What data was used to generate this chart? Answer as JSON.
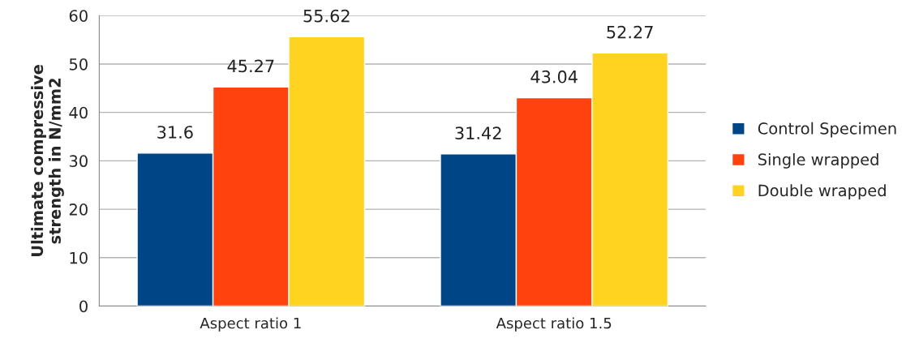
{
  "chart_data": {
    "type": "bar",
    "ylabel": "Ultimate compressive\nstrength in N/mm2",
    "categories": [
      "Aspect ratio 1",
      "Aspect ratio 1.5"
    ],
    "series": [
      {
        "name": "Control Specimen",
        "color": "#004586",
        "values": [
          31.6,
          31.42
        ]
      },
      {
        "name": "Single wrapped",
        "color": "#ff420e",
        "values": [
          45.27,
          43.04
        ]
      },
      {
        "name": "Double wrapped",
        "color": "#ffd320",
        "values": [
          55.62,
          52.27
        ]
      }
    ],
    "ylim": [
      0,
      60
    ],
    "yticks": [
      0,
      10,
      20,
      30,
      40,
      50,
      60
    ],
    "grid": "y",
    "legend": "right",
    "data_labels": true
  }
}
